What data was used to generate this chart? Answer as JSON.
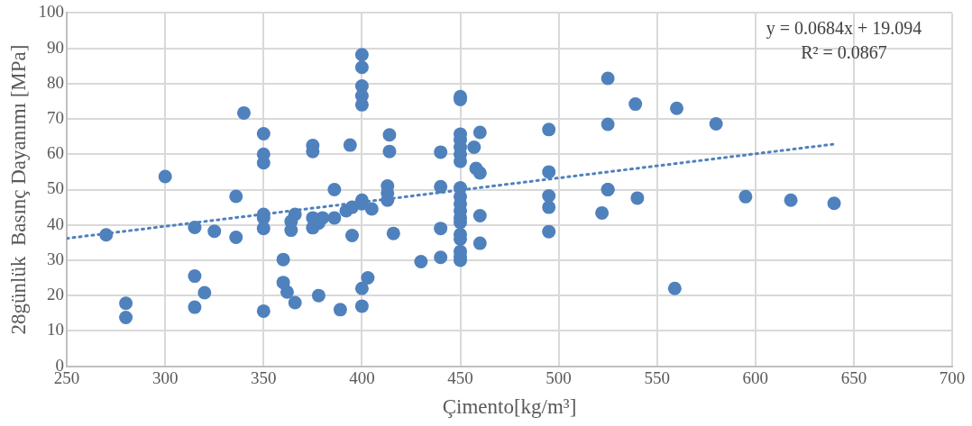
{
  "chart_data": {
    "type": "scatter",
    "xlabel": "Çimento[kg/m³]",
    "ylabel": "28günlük  Basınç Dayanımı [MPa]",
    "xlim": [
      250,
      700
    ],
    "xticks": [
      250,
      300,
      350,
      400,
      450,
      500,
      550,
      600,
      650,
      700
    ],
    "ylim": [
      0,
      100
    ],
    "yticks": [
      0,
      10,
      20,
      30,
      40,
      50,
      60,
      70,
      80,
      90,
      100
    ],
    "grid": true,
    "legend": false,
    "marker": "circle",
    "annotations": [
      "y = 0.0684x + 19.094",
      "R² = 0.0867"
    ],
    "series": [
      {
        "color": "#4f81bd",
        "x": [
          270,
          280,
          280,
          300,
          315,
          315,
          315,
          320,
          325,
          336,
          336,
          340,
          350,
          350,
          350,
          350,
          350,
          350,
          350,
          360,
          360,
          362,
          364,
          364,
          366,
          366,
          375,
          375,
          375,
          375,
          378,
          378,
          380,
          386,
          386,
          389,
          392,
          394,
          395,
          395,
          400,
          400,
          400,
          400,
          400,
          400,
          400,
          400,
          400,
          403,
          405,
          413,
          413,
          413,
          414,
          414,
          416,
          430,
          440,
          440,
          440,
          440,
          450,
          450,
          450,
          450,
          450,
          450,
          450,
          450,
          450,
          450,
          450,
          450,
          450,
          450,
          450,
          450,
          450,
          450,
          457,
          458,
          460,
          460,
          460,
          460,
          495,
          495,
          495,
          495,
          495,
          522,
          525,
          525,
          525,
          525,
          539,
          540,
          559,
          560,
          580,
          595,
          618,
          640
        ],
        "values": [
          37.2,
          17.8,
          13.8,
          53.7,
          39.3,
          25.5,
          16.7,
          20.8,
          38.2,
          36.5,
          48.1,
          71.7,
          65.8,
          60,
          57.6,
          43,
          42,
          39,
          15.6,
          30.2,
          23.7,
          21,
          41,
          38.5,
          43,
          18,
          62.5,
          60.8,
          42,
          39.2,
          40.5,
          20,
          42,
          50,
          42,
          16,
          44,
          62.6,
          45,
          37,
          88.2,
          84.6,
          79.3,
          76.5,
          74,
          47,
          46,
          22,
          17,
          25,
          44.5,
          51,
          49,
          47,
          65.5,
          60.8,
          37.6,
          29.6,
          60.6,
          50.8,
          39,
          30.8,
          76.3,
          75.5,
          65.7,
          64,
          62,
          60,
          58,
          50.5,
          48,
          46,
          44,
          42,
          40.7,
          37.3,
          36,
          32.5,
          31,
          30,
          62,
          56,
          54.7,
          66.2,
          42.6,
          34.8,
          67,
          55,
          48.2,
          45,
          38.1,
          43.4,
          81.5,
          68.5,
          50,
          50,
          74.2,
          47.6,
          22,
          73,
          68.6,
          48,
          47,
          46.1
        ]
      },
      {
        "type": "line",
        "color": "#4f81bd",
        "line_style": "dotted",
        "marker": "none",
        "x": [
          250,
          640
        ],
        "values": [
          36.19,
          62.87
        ]
      }
    ]
  }
}
